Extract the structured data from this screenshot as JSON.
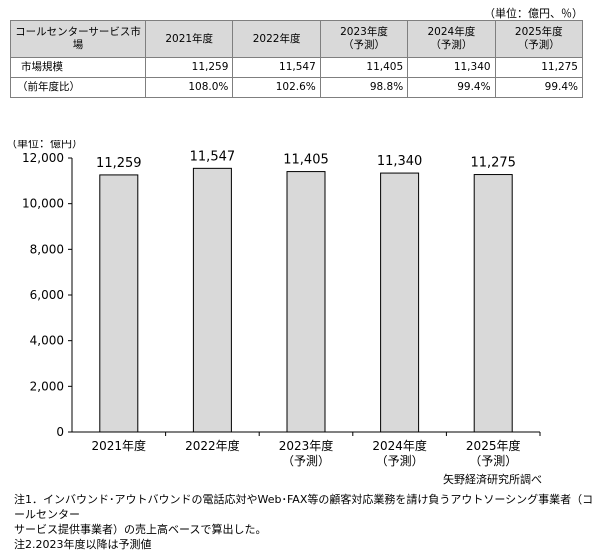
{
  "table": {
    "unit_note": "（単位：億円、％）",
    "header": [
      "コールセンターサービス市場",
      "2021年度",
      "2022年度",
      [
        "2023年度",
        "（予測）"
      ],
      [
        "2024年度",
        "（予測）"
      ],
      [
        "2025年度",
        "（予測）"
      ]
    ],
    "rows": [
      {
        "label": "市場規模",
        "values": [
          "11,259",
          "11,547",
          "11,405",
          "11,340",
          "11,275"
        ]
      },
      {
        "label": "（前年度比）",
        "values": [
          "108.0%",
          "102.6%",
          "98.8%",
          "99.4%",
          "99.4%"
        ]
      }
    ]
  },
  "chart_data": {
    "type": "bar",
    "unit_label": "（単位：億円）",
    "categories": [
      [
        "2021年度"
      ],
      [
        "2022年度"
      ],
      [
        "2023年度",
        "（予測）"
      ],
      [
        "2024年度",
        "（予測）"
      ],
      [
        "2025年度",
        "（予測）"
      ]
    ],
    "values": [
      11259,
      11547,
      11405,
      11340,
      11275
    ],
    "value_labels": [
      "11,259",
      "11,547",
      "11,405",
      "11,340",
      "11,275"
    ],
    "y_ticks": [
      "0",
      "2,000",
      "4,000",
      "6,000",
      "8,000",
      "10,000",
      "12,000"
    ],
    "ylim": [
      0,
      12000
    ],
    "grid": false,
    "bar_color": "#d9d9d9",
    "bar_edge_color": "#000000"
  },
  "source": "矢野経済研究所調べ",
  "notes": [
    "注1．インバウンド･アウトバウンドの電話応対やWeb･FAX等の顧客対応業務を請け負うアウトソーシング事業者（コールセンター",
    "サービス提供事業者）の売上高ベースで算出した。",
    "注2.2023年度以降は予測値"
  ]
}
